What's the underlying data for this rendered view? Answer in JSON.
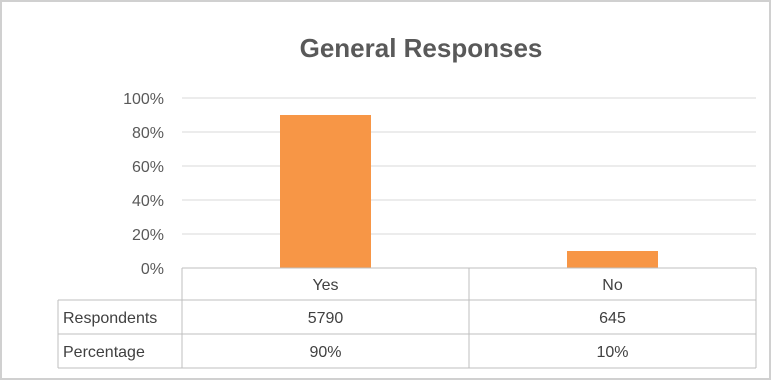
{
  "chart_data": {
    "type": "bar",
    "title": "General Responses",
    "categories": [
      "Yes",
      "No"
    ],
    "series": [
      {
        "values": [
          90,
          10
        ]
      }
    ],
    "ylim": [
      0,
      100
    ],
    "y_ticks": [
      "0%",
      "20%",
      "40%",
      "60%",
      "80%",
      "100%"
    ],
    "grid": true,
    "colors": {
      "bar": "#f79646"
    },
    "data_table": {
      "rows": [
        {
          "label": "Respondents",
          "values": [
            "5790",
            "645"
          ]
        },
        {
          "label": "Percentage",
          "values": [
            "90%",
            "10%"
          ]
        }
      ]
    }
  }
}
